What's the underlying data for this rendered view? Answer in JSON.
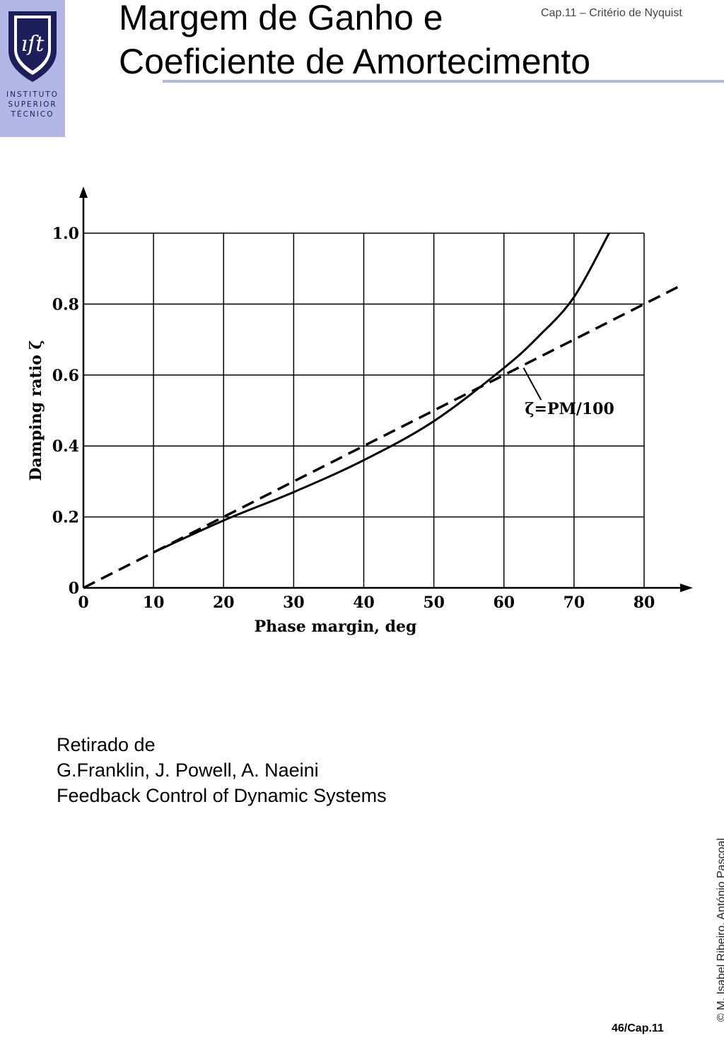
{
  "header": {
    "title_line1": "Margem de Ganho e",
    "title_line2": "Coeficiente de Amortecimento",
    "chapter": "Cap.11 – Critério de Nyquist",
    "logo": {
      "monogram": "IST",
      "line1": "INSTITUTO",
      "line2": "SUPERIOR",
      "line3": "TÉCNICO",
      "color_bg": "#b3b7e6",
      "color_shield": "#1d1f5a"
    }
  },
  "chart_data": {
    "type": "line",
    "xlabel": "Phase margin, deg",
    "ylabel": "Damping ratio ζ",
    "xlim": [
      0,
      80
    ],
    "ylim": [
      0,
      1.0
    ],
    "x_ticks": [
      "0",
      "10",
      "20",
      "30",
      "40",
      "50",
      "60",
      "70",
      "80"
    ],
    "y_ticks": [
      "0",
      "0.2",
      "0.4",
      "0.6",
      "0.8",
      "1.0"
    ],
    "grid": true,
    "annotation": "ζ=PM/100",
    "series": [
      {
        "style": "solid",
        "x": [
          10,
          20,
          30,
          40,
          50,
          60,
          65,
          70,
          75
        ],
        "y": [
          0.1,
          0.19,
          0.27,
          0.36,
          0.47,
          0.62,
          0.71,
          0.82,
          1.0
        ]
      },
      {
        "name": "ζ=PM/100",
        "style": "dashed",
        "x": [
          0,
          85
        ],
        "y": [
          0,
          0.85
        ]
      }
    ]
  },
  "reference": {
    "line1": "Retirado de",
    "line2": "G.Franklin, J. Powell, A. Naeini",
    "line3": "Feedback Control of Dynamic Systems"
  },
  "footer": {
    "copyright": "© M. Isabel Ribeiro, António Pascoal",
    "page": "46/Cap.11"
  }
}
